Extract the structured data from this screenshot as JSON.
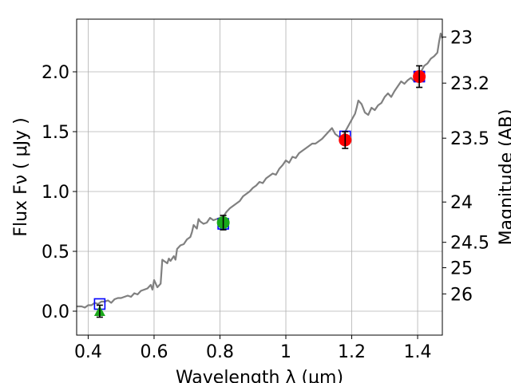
{
  "chart_data": {
    "type": "line",
    "xlabel": "Wavelength  λ (μm)",
    "ylabel": "Flux  Fν  ( μJy )",
    "y2label": "Magnitude (AB)",
    "xlim": [
      0.365,
      1.475
    ],
    "ylim": [
      -0.2,
      2.44
    ],
    "grid": true,
    "x_ticks": [
      {
        "v": 0.4,
        "label": "0.4"
      },
      {
        "v": 0.6,
        "label": "0.6"
      },
      {
        "v": 0.8,
        "label": "0.8"
      },
      {
        "v": 1.0,
        "label": "1"
      },
      {
        "v": 1.2,
        "label": "1.2"
      },
      {
        "v": 1.4,
        "label": "1.4"
      }
    ],
    "y_ticks": [
      {
        "v": 0.0,
        "label": "0.0"
      },
      {
        "v": 0.5,
        "label": "0.5"
      },
      {
        "v": 1.0,
        "label": "1.0"
      },
      {
        "v": 1.5,
        "label": "1.5"
      },
      {
        "v": 2.0,
        "label": "2.0"
      }
    ],
    "y2_ticks": [
      {
        "v": 23,
        "label": "23"
      },
      {
        "v": 23.2,
        "label": "23.2"
      },
      {
        "v": 23.5,
        "label": "23.5"
      },
      {
        "v": 24,
        "label": "24"
      },
      {
        "v": 24.5,
        "label": "24.5"
      },
      {
        "v": 25,
        "label": "25"
      },
      {
        "v": 26,
        "label": "26"
      }
    ],
    "spectrum": {
      "color": "#808080",
      "x": [
        0.365,
        0.38,
        0.39,
        0.4,
        0.41,
        0.42,
        0.43,
        0.44,
        0.45,
        0.46,
        0.47,
        0.48,
        0.49,
        0.5,
        0.51,
        0.52,
        0.53,
        0.54,
        0.55,
        0.56,
        0.57,
        0.58,
        0.59,
        0.595,
        0.6,
        0.61,
        0.62,
        0.625,
        0.63,
        0.64,
        0.645,
        0.65,
        0.66,
        0.665,
        0.67,
        0.68,
        0.69,
        0.7,
        0.71,
        0.715,
        0.72,
        0.73,
        0.735,
        0.74,
        0.75,
        0.76,
        0.77,
        0.775,
        0.78,
        0.79,
        0.8,
        0.81,
        0.82,
        0.83,
        0.84,
        0.85,
        0.86,
        0.87,
        0.88,
        0.89,
        0.9,
        0.91,
        0.92,
        0.93,
        0.94,
        0.95,
        0.96,
        0.97,
        0.98,
        0.99,
        1.0,
        1.01,
        1.02,
        1.03,
        1.04,
        1.05,
        1.06,
        1.07,
        1.08,
        1.09,
        1.1,
        1.11,
        1.12,
        1.13,
        1.14,
        1.15,
        1.16,
        1.17,
        1.18,
        1.19,
        1.2,
        1.21,
        1.215,
        1.22,
        1.23,
        1.24,
        1.25,
        1.26,
        1.27,
        1.28,
        1.29,
        1.3,
        1.31,
        1.32,
        1.33,
        1.34,
        1.35,
        1.36,
        1.37,
        1.38,
        1.39,
        1.4,
        1.41,
        1.42,
        1.43,
        1.44,
        1.45,
        1.46,
        1.465,
        1.47,
        1.475
      ],
      "y": [
        0.04,
        0.04,
        0.03,
        0.05,
        0.05,
        0.07,
        0.06,
        0.08,
        0.08,
        0.09,
        0.07,
        0.1,
        0.11,
        0.11,
        0.12,
        0.13,
        0.12,
        0.15,
        0.14,
        0.17,
        0.18,
        0.19,
        0.22,
        0.18,
        0.26,
        0.2,
        0.23,
        0.43,
        0.42,
        0.4,
        0.44,
        0.42,
        0.46,
        0.43,
        0.52,
        0.55,
        0.56,
        0.6,
        0.62,
        0.66,
        0.72,
        0.69,
        0.77,
        0.75,
        0.73,
        0.74,
        0.78,
        0.77,
        0.76,
        0.77,
        0.78,
        0.79,
        0.83,
        0.86,
        0.88,
        0.9,
        0.92,
        0.96,
        0.98,
        1.0,
        1.03,
        1.05,
        1.08,
        1.07,
        1.11,
        1.13,
        1.15,
        1.14,
        1.19,
        1.22,
        1.26,
        1.24,
        1.29,
        1.28,
        1.32,
        1.34,
        1.36,
        1.38,
        1.4,
        1.4,
        1.42,
        1.44,
        1.47,
        1.5,
        1.53,
        1.48,
        1.46,
        1.44,
        1.5,
        1.55,
        1.6,
        1.65,
        1.7,
        1.76,
        1.73,
        1.66,
        1.64,
        1.7,
        1.68,
        1.72,
        1.74,
        1.79,
        1.82,
        1.79,
        1.84,
        1.88,
        1.92,
        1.9,
        1.93,
        1.95,
        1.92,
        1.97,
        2.0,
        2.05,
        2.07,
        2.11,
        2.13,
        2.16,
        2.25,
        2.32,
        2.28
      ]
    },
    "model_points": {
      "marker": "open-square",
      "color": "#0000ff",
      "x": [
        0.435,
        0.81,
        1.18,
        1.405
      ],
      "y": [
        0.06,
        0.73,
        1.46,
        1.96
      ]
    },
    "observations": [
      {
        "x": 0.435,
        "y": 0.0,
        "yerr": 0.05,
        "marker": "triangle",
        "color": "#1aa81a"
      },
      {
        "x": 0.81,
        "y": 0.74,
        "yerr": 0.06,
        "marker": "circle",
        "color": "#1aa81a"
      },
      {
        "x": 1.18,
        "y": 1.43,
        "yerr": 0.07,
        "marker": "circle",
        "color": "#ff0000"
      },
      {
        "x": 1.405,
        "y": 1.96,
        "yerr": 0.09,
        "marker": "circle",
        "color": "#ff0000"
      }
    ]
  }
}
